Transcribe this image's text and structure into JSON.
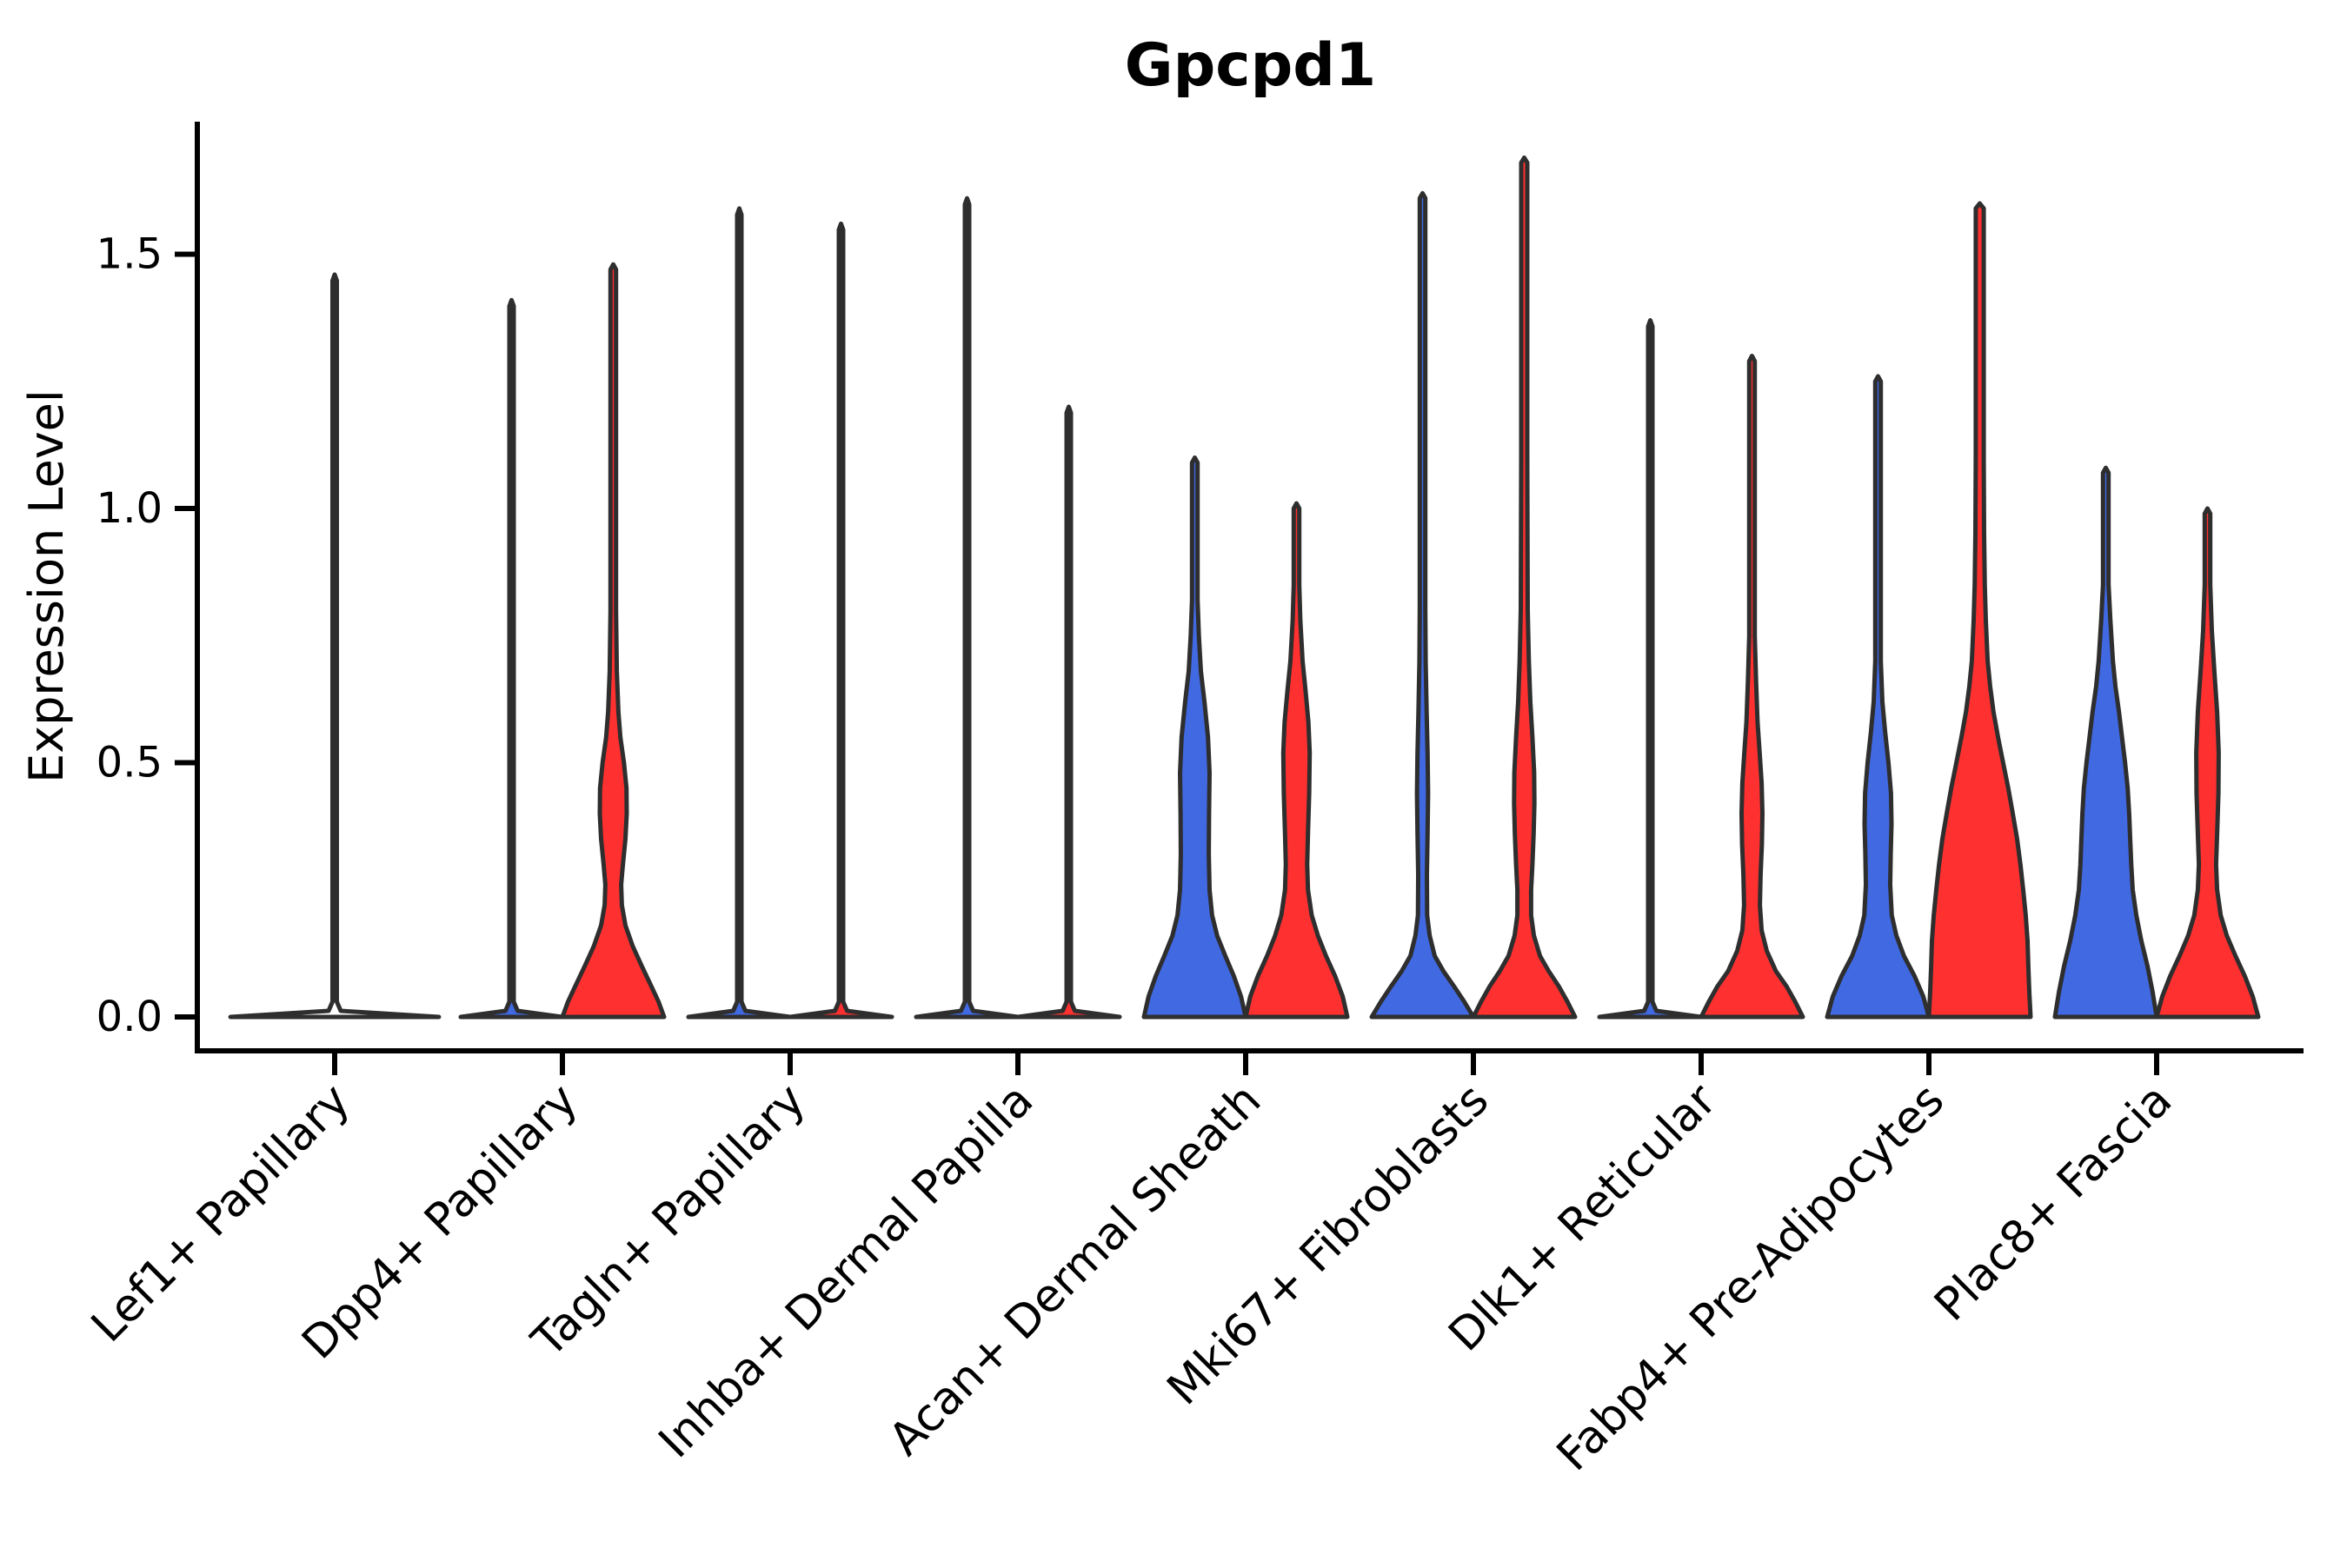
{
  "chart_data": {
    "type": "violin",
    "title": "Gpcpd1",
    "ylabel": "Expression Level",
    "xlabel": "",
    "legend_position": "none",
    "grid": false,
    "ytick_values": [
      0.0,
      0.5,
      1.0,
      1.5
    ],
    "ytick_labels": [
      "0.0",
      "0.5",
      "1.0",
      "1.5"
    ],
    "ylim": [
      -0.08,
      1.78
    ],
    "categories": [
      "Lef1+ Papillary",
      "Dpp4+ Papillary",
      "Tagln+ Papillary",
      "Inhba+ Dermal Papilla",
      "Acan+ Dermal Sheath",
      "Mki67+ Fibroblasts",
      "Dlk1+ Reticular",
      "Fabp4+ Pre-Adipocytes",
      "Plac8+ Fascia"
    ],
    "split_colors": {
      "blue": "#4169E1",
      "red": "#FF3030"
    },
    "outline_color": "#2E2E2E",
    "violins": [
      {
        "category": "Lef1+ Papillary",
        "cat_index": 0,
        "side": "center",
        "color": "none",
        "shape": "flat_spike",
        "max": 1.46,
        "base_frac": 2.05
      },
      {
        "category": "Dpp4+ Papillary",
        "cat_index": 1,
        "side": "left",
        "color": "blue",
        "shape": "flat_spike",
        "max": 1.41,
        "base_frac": 1.0
      },
      {
        "category": "Dpp4+ Papillary",
        "cat_index": 1,
        "side": "right",
        "color": "red",
        "shape": "density",
        "max": 1.48,
        "profile": [
          [
            0,
            1.0
          ],
          [
            0.03,
            0.89
          ],
          [
            0.06,
            0.75
          ],
          [
            0.1,
            0.56
          ],
          [
            0.14,
            0.38
          ],
          [
            0.18,
            0.24
          ],
          [
            0.22,
            0.17
          ],
          [
            0.26,
            0.155
          ],
          [
            0.3,
            0.19
          ],
          [
            0.35,
            0.24
          ],
          [
            0.4,
            0.265
          ],
          [
            0.45,
            0.26
          ],
          [
            0.5,
            0.21
          ],
          [
            0.55,
            0.14
          ],
          [
            0.6,
            0.1
          ],
          [
            0.68,
            0.07
          ],
          [
            0.8,
            0.055
          ],
          [
            1.47,
            0.055
          ],
          [
            1.48,
            0
          ]
        ]
      },
      {
        "category": "Tagln+ Papillary",
        "cat_index": 2,
        "side": "left",
        "color": "blue",
        "shape": "flat_spike",
        "max": 1.59,
        "base_frac": 1.0
      },
      {
        "category": "Tagln+ Papillary",
        "cat_index": 2,
        "side": "right",
        "color": "red",
        "shape": "flat_spike",
        "max": 1.56,
        "base_frac": 1.0
      },
      {
        "category": "Inhba+ Dermal Papilla",
        "cat_index": 3,
        "side": "left",
        "color": "blue",
        "shape": "flat_spike",
        "max": 1.61,
        "base_frac": 1.0
      },
      {
        "category": "Inhba+ Dermal Papilla",
        "cat_index": 3,
        "side": "right",
        "color": "red",
        "shape": "flat_spike",
        "max": 1.2,
        "base_frac": 1.0
      },
      {
        "category": "Acan+ Dermal Sheath",
        "cat_index": 4,
        "side": "left",
        "color": "blue",
        "shape": "density",
        "max": 1.1,
        "profile": [
          [
            0,
            1.0
          ],
          [
            0.04,
            0.91
          ],
          [
            0.08,
            0.77
          ],
          [
            0.12,
            0.6
          ],
          [
            0.16,
            0.44
          ],
          [
            0.2,
            0.34
          ],
          [
            0.25,
            0.29
          ],
          [
            0.32,
            0.275
          ],
          [
            0.4,
            0.28
          ],
          [
            0.48,
            0.29
          ],
          [
            0.55,
            0.26
          ],
          [
            0.62,
            0.19
          ],
          [
            0.68,
            0.12
          ],
          [
            0.75,
            0.08
          ],
          [
            0.82,
            0.055
          ],
          [
            1.09,
            0.055
          ],
          [
            1.1,
            0
          ]
        ]
      },
      {
        "category": "Acan+ Dermal Sheath",
        "cat_index": 4,
        "side": "right",
        "color": "red",
        "shape": "density",
        "max": 1.01,
        "profile": [
          [
            0,
            1.0
          ],
          [
            0.04,
            0.91
          ],
          [
            0.08,
            0.76
          ],
          [
            0.12,
            0.58
          ],
          [
            0.16,
            0.42
          ],
          [
            0.2,
            0.3
          ],
          [
            0.25,
            0.225
          ],
          [
            0.3,
            0.21
          ],
          [
            0.36,
            0.225
          ],
          [
            0.44,
            0.25
          ],
          [
            0.52,
            0.26
          ],
          [
            0.58,
            0.235
          ],
          [
            0.64,
            0.18
          ],
          [
            0.7,
            0.12
          ],
          [
            0.78,
            0.075
          ],
          [
            0.85,
            0.055
          ],
          [
            1.0,
            0.055
          ],
          [
            1.01,
            0
          ]
        ]
      },
      {
        "category": "Mki67+ Fibroblasts",
        "cat_index": 5,
        "side": "left",
        "color": "blue",
        "shape": "density",
        "max": 1.62,
        "profile": [
          [
            0,
            1.0
          ],
          [
            0.03,
            0.82
          ],
          [
            0.06,
            0.62
          ],
          [
            0.09,
            0.41
          ],
          [
            0.12,
            0.24
          ],
          [
            0.16,
            0.14
          ],
          [
            0.2,
            0.09
          ],
          [
            0.28,
            0.085
          ],
          [
            0.36,
            0.1
          ],
          [
            0.44,
            0.11
          ],
          [
            0.52,
            0.1
          ],
          [
            0.6,
            0.08
          ],
          [
            0.7,
            0.062
          ],
          [
            0.8,
            0.055
          ],
          [
            1.61,
            0.055
          ],
          [
            1.62,
            0
          ]
        ]
      },
      {
        "category": "Mki67+ Fibroblasts",
        "cat_index": 5,
        "side": "right",
        "color": "red",
        "shape": "density",
        "max": 1.69,
        "profile": [
          [
            0,
            1.0
          ],
          [
            0.03,
            0.85
          ],
          [
            0.06,
            0.68
          ],
          [
            0.09,
            0.48
          ],
          [
            0.12,
            0.31
          ],
          [
            0.16,
            0.19
          ],
          [
            0.2,
            0.135
          ],
          [
            0.25,
            0.135
          ],
          [
            0.3,
            0.16
          ],
          [
            0.36,
            0.185
          ],
          [
            0.42,
            0.2
          ],
          [
            0.48,
            0.195
          ],
          [
            0.55,
            0.16
          ],
          [
            0.62,
            0.12
          ],
          [
            0.7,
            0.09
          ],
          [
            0.8,
            0.068
          ],
          [
            1.1,
            0.06
          ],
          [
            1.68,
            0.06
          ],
          [
            1.69,
            0
          ]
        ]
      },
      {
        "category": "Dlk1+ Reticular",
        "cat_index": 6,
        "side": "left",
        "color": "blue",
        "shape": "flat_spike",
        "max": 1.37,
        "base_frac": 1.0
      },
      {
        "category": "Dlk1+ Reticular",
        "cat_index": 6,
        "side": "right",
        "color": "red",
        "shape": "density",
        "max": 1.3,
        "profile": [
          [
            0,
            1.0
          ],
          [
            0.03,
            0.85
          ],
          [
            0.06,
            0.68
          ],
          [
            0.09,
            0.47
          ],
          [
            0.13,
            0.29
          ],
          [
            0.17,
            0.19
          ],
          [
            0.22,
            0.155
          ],
          [
            0.28,
            0.17
          ],
          [
            0.34,
            0.195
          ],
          [
            0.4,
            0.205
          ],
          [
            0.46,
            0.19
          ],
          [
            0.52,
            0.15
          ],
          [
            0.58,
            0.11
          ],
          [
            0.66,
            0.08
          ],
          [
            0.75,
            0.055
          ],
          [
            1.29,
            0.055
          ],
          [
            1.3,
            0
          ]
        ]
      },
      {
        "category": "Fabp4+ Pre-Adipocytes",
        "cat_index": 7,
        "side": "left",
        "color": "blue",
        "shape": "density",
        "max": 1.26,
        "profile": [
          [
            0,
            1.0
          ],
          [
            0.04,
            0.89
          ],
          [
            0.08,
            0.72
          ],
          [
            0.12,
            0.51
          ],
          [
            0.16,
            0.36
          ],
          [
            0.2,
            0.27
          ],
          [
            0.26,
            0.24
          ],
          [
            0.32,
            0.25
          ],
          [
            0.38,
            0.265
          ],
          [
            0.44,
            0.255
          ],
          [
            0.5,
            0.205
          ],
          [
            0.56,
            0.14
          ],
          [
            0.62,
            0.085
          ],
          [
            0.7,
            0.055
          ],
          [
            1.25,
            0.055
          ],
          [
            1.26,
            0
          ]
        ]
      },
      {
        "category": "Fabp4+ Pre-Adipocytes",
        "cat_index": 7,
        "side": "right",
        "color": "red",
        "shape": "density",
        "max": 1.6,
        "profile": [
          [
            0,
            1.0
          ],
          [
            0.05,
            0.975
          ],
          [
            0.1,
            0.955
          ],
          [
            0.15,
            0.94
          ],
          [
            0.2,
            0.905
          ],
          [
            0.25,
            0.855
          ],
          [
            0.3,
            0.8
          ],
          [
            0.35,
            0.735
          ],
          [
            0.4,
            0.65
          ],
          [
            0.45,
            0.56
          ],
          [
            0.5,
            0.46
          ],
          [
            0.55,
            0.36
          ],
          [
            0.6,
            0.27
          ],
          [
            0.65,
            0.205
          ],
          [
            0.7,
            0.155
          ],
          [
            0.78,
            0.12
          ],
          [
            0.85,
            0.1
          ],
          [
            0.95,
            0.085
          ],
          [
            1.1,
            0.078
          ],
          [
            1.59,
            0.078
          ],
          [
            1.6,
            0
          ]
        ]
      },
      {
        "category": "Plac8+ Fascia",
        "cat_index": 8,
        "side": "left",
        "color": "blue",
        "shape": "density",
        "max": 1.08,
        "profile": [
          [
            0,
            1.0
          ],
          [
            0.05,
            0.92
          ],
          [
            0.1,
            0.82
          ],
          [
            0.15,
            0.7
          ],
          [
            0.2,
            0.6
          ],
          [
            0.25,
            0.53
          ],
          [
            0.3,
            0.5
          ],
          [
            0.35,
            0.48
          ],
          [
            0.4,
            0.46
          ],
          [
            0.45,
            0.43
          ],
          [
            0.5,
            0.38
          ],
          [
            0.55,
            0.32
          ],
          [
            0.6,
            0.26
          ],
          [
            0.65,
            0.19
          ],
          [
            0.7,
            0.14
          ],
          [
            0.78,
            0.09
          ],
          [
            0.85,
            0.055
          ],
          [
            1.07,
            0.055
          ],
          [
            1.08,
            0
          ]
        ]
      },
      {
        "category": "Plac8+ Fascia",
        "cat_index": 8,
        "side": "right",
        "color": "red",
        "shape": "density",
        "max": 1.0,
        "profile": [
          [
            0,
            1.0
          ],
          [
            0.04,
            0.89
          ],
          [
            0.08,
            0.735
          ],
          [
            0.12,
            0.55
          ],
          [
            0.16,
            0.38
          ],
          [
            0.2,
            0.26
          ],
          [
            0.25,
            0.19
          ],
          [
            0.3,
            0.17
          ],
          [
            0.36,
            0.19
          ],
          [
            0.44,
            0.215
          ],
          [
            0.52,
            0.22
          ],
          [
            0.6,
            0.19
          ],
          [
            0.68,
            0.135
          ],
          [
            0.76,
            0.085
          ],
          [
            0.85,
            0.055
          ],
          [
            0.99,
            0.055
          ],
          [
            1.0,
            0
          ]
        ]
      }
    ]
  }
}
